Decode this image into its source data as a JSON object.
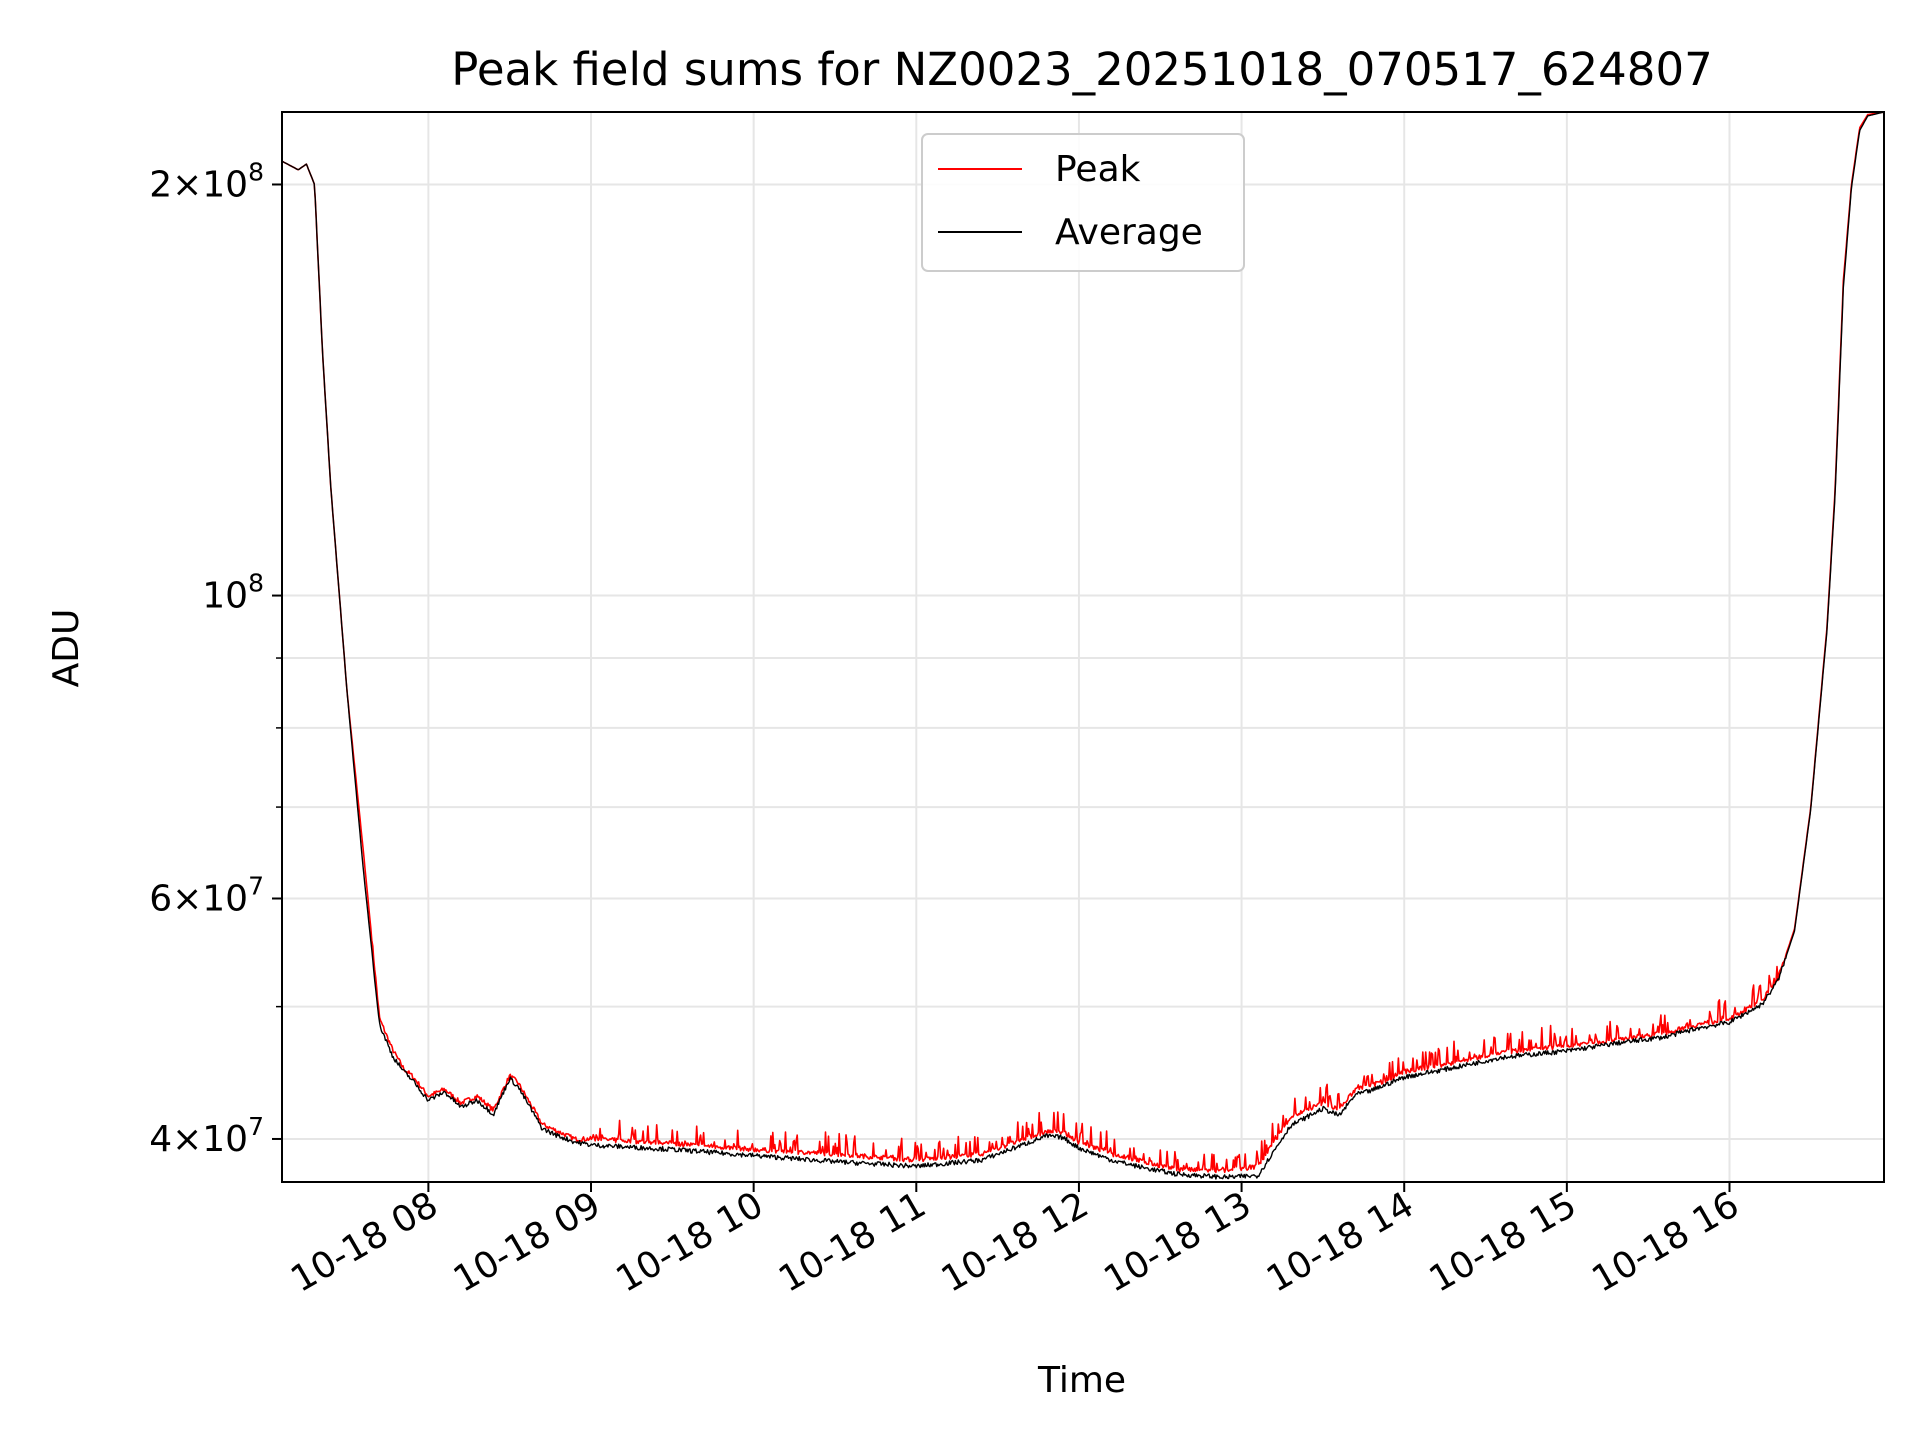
{
  "chart_data": {
    "type": "line",
    "title": "Peak field sums for NZ0023_20251018_070517_624807",
    "xlabel": "Time",
    "ylabel": "ADU",
    "x_unit": "hours since 10-18 00:00",
    "xlim": [
      7.1,
      16.95
    ],
    "ylim": [
      37200000,
      226000000
    ],
    "yscale": "log",
    "grid": true,
    "legend_position": "upper-center",
    "x_ticks": [
      {
        "value": 8,
        "label": "10-18 08"
      },
      {
        "value": 9,
        "label": "10-18 09"
      },
      {
        "value": 10,
        "label": "10-18 10"
      },
      {
        "value": 11,
        "label": "10-18 11"
      },
      {
        "value": 12,
        "label": "10-18 12"
      },
      {
        "value": 13,
        "label": "10-18 13"
      },
      {
        "value": 14,
        "label": "10-18 14"
      },
      {
        "value": 15,
        "label": "10-18 15"
      },
      {
        "value": 16,
        "label": "10-18 16"
      }
    ],
    "y_major_ticks": [
      {
        "value": 40000000,
        "mantissa": "4",
        "exp": "7"
      },
      {
        "value": 60000000,
        "mantissa": "6",
        "exp": "7"
      },
      {
        "value": 100000000,
        "mantissa": "",
        "exp": "8"
      },
      {
        "value": 200000000,
        "mantissa": "2",
        "exp": "8"
      }
    ],
    "y_minor_ticks": [
      50000000,
      70000000,
      80000000,
      90000000
    ],
    "series": [
      {
        "name": "Peak",
        "color": "#ff0000",
        "x": [
          7.1,
          7.2,
          7.25,
          7.3,
          7.35,
          7.4,
          7.5,
          7.6,
          7.7,
          7.78,
          7.85,
          7.9,
          8.0,
          8.1,
          8.2,
          8.3,
          8.4,
          8.5,
          8.55,
          8.65,
          8.7,
          8.8,
          8.9,
          9.0,
          9.5,
          10.0,
          10.5,
          11.0,
          11.4,
          11.8,
          11.9,
          12.0,
          12.2,
          12.4,
          12.6,
          12.9,
          13.1,
          13.3,
          13.5,
          13.6,
          13.7,
          13.8,
          13.9,
          14.0,
          14.3,
          14.6,
          15.0,
          15.3,
          15.6,
          15.8,
          16.0,
          16.2,
          16.3,
          16.4,
          16.5,
          16.6,
          16.65,
          16.7,
          16.75,
          16.8,
          16.85,
          16.95
        ],
        "y": [
          208000000,
          205000000,
          207000000,
          200000000,
          150000000,
          120000000,
          85000000,
          65000000,
          49000000,
          46500000,
          45000000,
          44500000,
          43000000,
          43500000,
          42500000,
          43000000,
          42000000,
          44500000,
          44000000,
          42000000,
          41000000,
          40500000,
          40000000,
          40000000,
          39700000,
          39300000,
          39000000,
          38600000,
          39000000,
          40500000,
          40500000,
          39800000,
          39000000,
          38500000,
          38000000,
          37900000,
          38200000,
          41500000,
          42500000,
          42000000,
          43500000,
          43800000,
          44200000,
          44800000,
          45500000,
          46300000,
          46800000,
          47300000,
          47800000,
          48500000,
          49000000,
          50500000,
          52500000,
          57000000,
          70000000,
          95000000,
          120000000,
          170000000,
          200000000,
          220000000,
          225000000,
          226000000
        ]
      },
      {
        "name": "Average",
        "color": "#000000",
        "x": [
          7.1,
          7.2,
          7.25,
          7.3,
          7.35,
          7.4,
          7.5,
          7.6,
          7.7,
          7.78,
          7.85,
          7.9,
          8.0,
          8.1,
          8.2,
          8.3,
          8.4,
          8.5,
          8.55,
          8.65,
          8.7,
          8.8,
          8.9,
          9.0,
          9.5,
          10.0,
          10.5,
          11.0,
          11.4,
          11.8,
          11.9,
          12.0,
          12.2,
          12.4,
          12.6,
          12.9,
          13.1,
          13.3,
          13.5,
          13.6,
          13.7,
          13.8,
          13.9,
          14.0,
          14.3,
          14.6,
          15.0,
          15.3,
          15.6,
          15.8,
          16.0,
          16.2,
          16.3,
          16.4,
          16.5,
          16.6,
          16.65,
          16.7,
          16.75,
          16.8,
          16.85,
          16.95
        ],
        "y": [
          208000000,
          205000000,
          207000000,
          200000000,
          150000000,
          120000000,
          85000000,
          63000000,
          48500000,
          46000000,
          44800000,
          44200000,
          42700000,
          43300000,
          42200000,
          42700000,
          41700000,
          44300000,
          43700000,
          41700000,
          40700000,
          40200000,
          39800000,
          39600000,
          39300000,
          38900000,
          38500000,
          38200000,
          38600000,
          40200000,
          40100000,
          39400000,
          38600000,
          38100000,
          37700000,
          37500000,
          37600000,
          40900000,
          42100000,
          41600000,
          43100000,
          43400000,
          43900000,
          44400000,
          45100000,
          45900000,
          46400000,
          47000000,
          47500000,
          48200000,
          48700000,
          50200000,
          52300000,
          56800000,
          69800000,
          94500000,
          119000000,
          168000000,
          199000000,
          219000000,
          224500000,
          226000000
        ]
      }
    ]
  }
}
